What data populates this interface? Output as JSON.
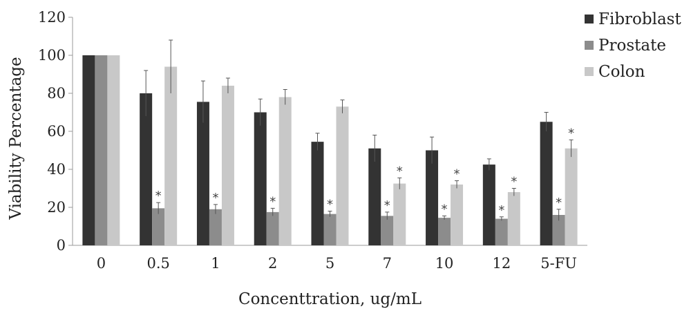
{
  "chart_data": {
    "type": "bar",
    "xlabel": "Concenttration, ug/mL",
    "ylabel": "Viability Percentage",
    "ylim": [
      0,
      120
    ],
    "yticks": [
      0,
      20,
      40,
      60,
      80,
      100,
      120
    ],
    "grid": false,
    "legend_position": "top-right",
    "categories": [
      "0",
      "0.5",
      "1",
      "2",
      "5",
      "7",
      "10",
      "12",
      "5-FU"
    ],
    "series": [
      {
        "name": "Fibroblast",
        "color": "#333333",
        "values": [
          100,
          80,
          75.5,
          70,
          54.5,
          51,
          50,
          42.5,
          65
        ],
        "errors": [
          0,
          12,
          11,
          7,
          4.5,
          7,
          7,
          3,
          5
        ],
        "significant": [
          false,
          false,
          false,
          false,
          false,
          false,
          false,
          false,
          false
        ]
      },
      {
        "name": "Prostate",
        "color": "#8c8c8c",
        "values": [
          100,
          19.5,
          19,
          17.5,
          16.5,
          15.5,
          14.5,
          14,
          16
        ],
        "errors": [
          0,
          3,
          2.5,
          2,
          1.5,
          2,
          1,
          1,
          3
        ],
        "significant": [
          false,
          true,
          true,
          true,
          true,
          true,
          true,
          true,
          true
        ]
      },
      {
        "name": "Colon",
        "color": "#c8c8c8",
        "values": [
          100,
          94,
          84,
          78,
          73,
          32.5,
          32,
          28,
          51
        ],
        "errors": [
          0,
          14,
          4,
          4,
          3.5,
          3,
          2,
          2,
          4.5
        ],
        "significant": [
          false,
          false,
          false,
          false,
          false,
          true,
          true,
          true,
          true
        ]
      }
    ],
    "annotation_symbol": "*"
  }
}
